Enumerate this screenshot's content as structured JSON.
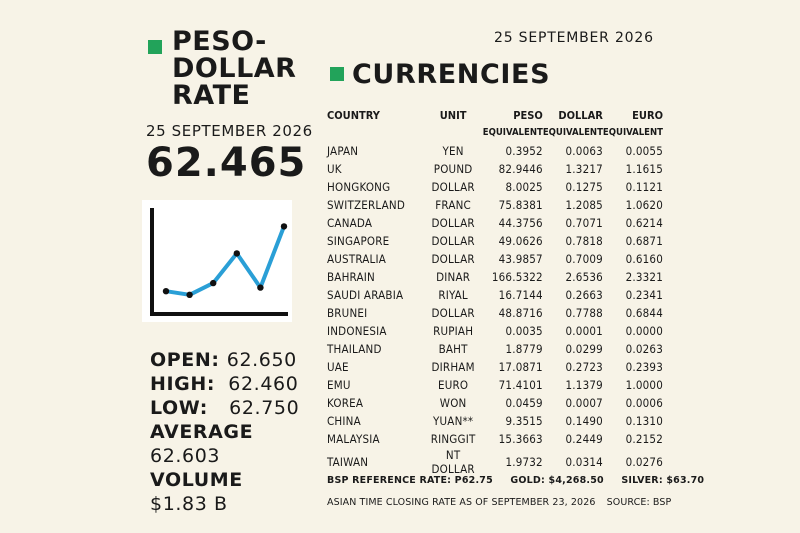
{
  "left_panel": {
    "title_line1": "PESO-",
    "title_line2": "DOLLAR",
    "title_line3": "RATE",
    "date": "25 SEPTEMBER 2026",
    "rate": "62.465",
    "stats": {
      "open_label": "OPEN:",
      "open_value": "62.650",
      "high_label": "HIGH:",
      "high_value": "62.460",
      "low_label": "LOW:",
      "low_value": "62.750",
      "average_label": "AVERAGE",
      "average_value": "62.603",
      "volume_label": "VOLUME",
      "volume_value": "$1.83 B"
    }
  },
  "accent_color": "#22a35a",
  "line_color": "#2a9fd6",
  "right_panel": {
    "date": "25 SEPTEMBER 2026",
    "title": "CURRENCIES",
    "headers": [
      "COUNTRY",
      "UNIT",
      "PESO",
      "DOLLAR",
      "EURO"
    ],
    "subheaders": [
      "",
      "",
      "EQUIVALENT",
      "EQUIVALENT",
      "EQUIVALENT"
    ],
    "rows": [
      [
        "JAPAN",
        "YEN",
        "0.3952",
        "0.0063",
        "0.0055"
      ],
      [
        "UK",
        "POUND",
        "82.9446",
        "1.3217",
        "1.1615"
      ],
      [
        "HONGKONG",
        "DOLLAR",
        "8.0025",
        "0.1275",
        "0.1121"
      ],
      [
        "SWITZERLAND",
        "FRANC",
        "75.8381",
        "1.2085",
        "1.0620"
      ],
      [
        "CANADA",
        "DOLLAR",
        "44.3756",
        "0.7071",
        "0.6214"
      ],
      [
        "SINGAPORE",
        "DOLLAR",
        "49.0626",
        "0.7818",
        "0.6871"
      ],
      [
        "AUSTRALIA",
        "DOLLAR",
        "43.9857",
        "0.7009",
        "0.6160"
      ],
      [
        "BAHRAIN",
        "DINAR",
        "166.5322",
        "2.6536",
        "2.3321"
      ],
      [
        "SAUDI ARABIA",
        "RIYAL",
        "16.7144",
        "0.2663",
        "0.2341"
      ],
      [
        "BRUNEI",
        "DOLLAR",
        "48.8716",
        "0.7788",
        "0.6844"
      ],
      [
        "INDONESIA",
        "RUPIAH",
        "0.0035",
        "0.0001",
        "0.0000"
      ],
      [
        "THAILAND",
        "BAHT",
        "1.8779",
        "0.0299",
        "0.0263"
      ],
      [
        "UAE",
        "DIRHAM",
        "17.0871",
        "0.2723",
        "0.2393"
      ],
      [
        "EMU",
        "EURO",
        "71.4101",
        "1.1379",
        "1.0000"
      ],
      [
        "KOREA",
        "WON",
        "0.0459",
        "0.0007",
        "0.0006"
      ],
      [
        "CHINA",
        "YUAN**",
        "9.3515",
        "0.1490",
        "0.1310"
      ],
      [
        "MALAYSIA",
        "RINGGIT",
        "15.3663",
        "0.2449",
        "0.2152"
      ],
      [
        "TAIWAN",
        "NT DOLLAR",
        "1.9732",
        "0.0314",
        "0.0276"
      ]
    ],
    "footer": {
      "bsp": "BSP REFERENCE RATE: P62.75",
      "gold": "GOLD: $4,268.50",
      "silver": "SILVER: $63.70",
      "closing": "ASIAN TIME CLOSING RATE AS OF SEPTEMBER 23, 2026",
      "source": "SOURCE: BSP"
    }
  },
  "chart_data": {
    "type": "line",
    "title": "",
    "xlabel": "",
    "ylabel": "",
    "x": [
      1,
      2,
      3,
      4,
      5,
      6
    ],
    "series": [
      {
        "values": [
          1.2,
          0.8,
          2.1,
          5.4,
          1.6,
          8.4
        ]
      }
    ],
    "ylim": [
      0,
      10
    ],
    "grid": false,
    "legend": "none"
  }
}
